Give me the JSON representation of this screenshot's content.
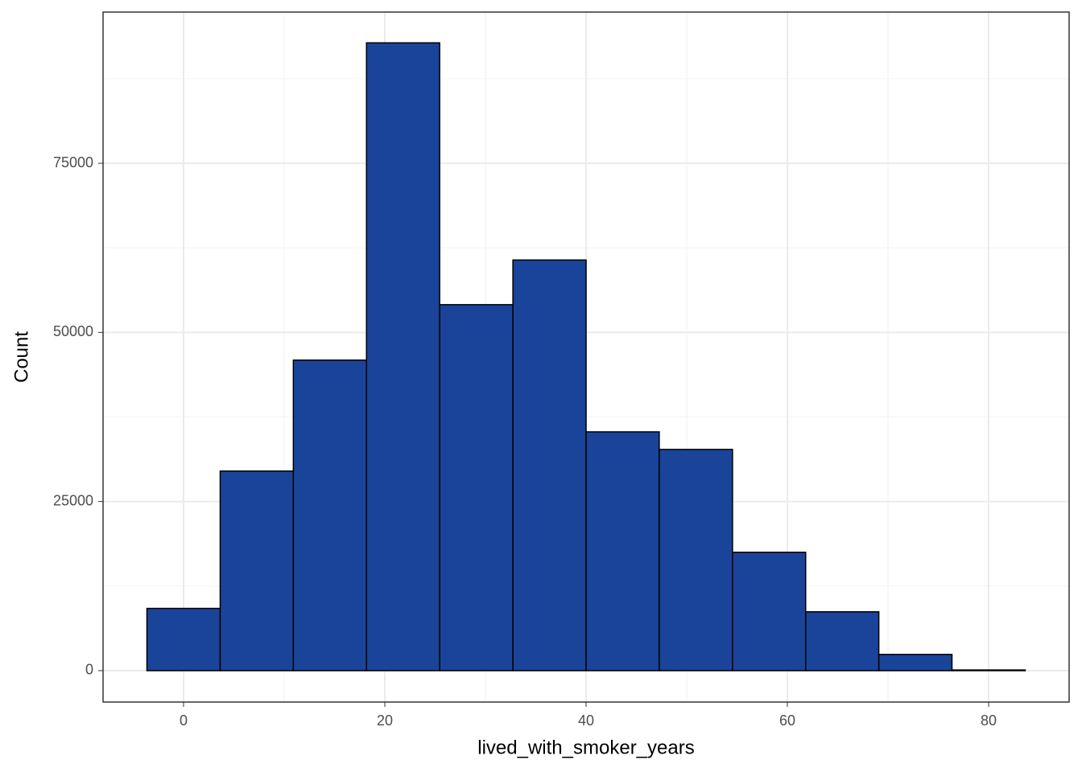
{
  "chart_data": {
    "type": "histogram",
    "x_label": "lived_with_smoker_years",
    "y_label": "Count",
    "bins": [
      -3.64,
      3.64,
      10.91,
      18.18,
      25.45,
      32.73,
      40,
      47.27,
      54.55,
      61.82,
      69.09,
      76.36,
      83.64
    ],
    "values": [
      9200,
      29500,
      45900,
      92800,
      54100,
      60700,
      35300,
      32700,
      17500,
      8700,
      2400,
      100
    ],
    "color": "#1a4499",
    "xlim": [
      -8,
      88
    ],
    "xticks": [
      0,
      20,
      40,
      60,
      80
    ],
    "ylim": [
      -4640,
      97350
    ],
    "yticks": [
      0,
      25000,
      50000,
      75000
    ],
    "grid": true
  }
}
